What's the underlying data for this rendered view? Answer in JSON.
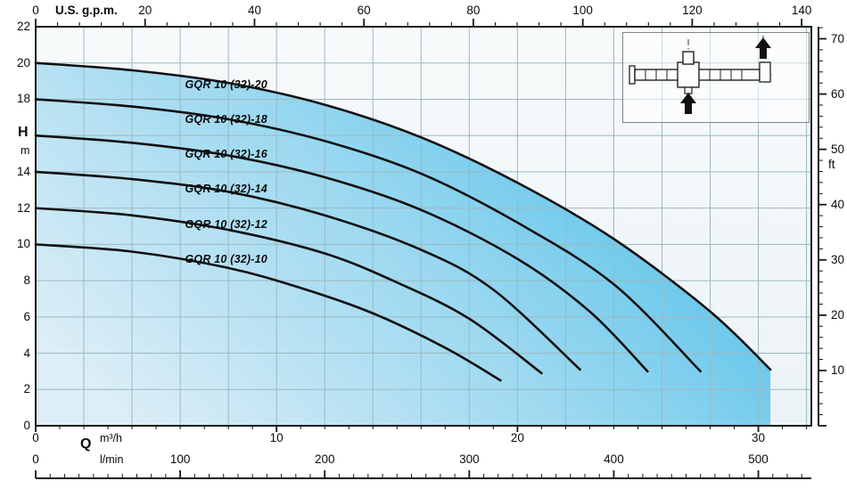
{
  "chart_data": {
    "type": "line",
    "description": "Pump head/flow performance curves",
    "axes": {
      "top": {
        "unit": "U.S. g.p.m.",
        "ticks": [
          0,
          20,
          40,
          60,
          80,
          100,
          120,
          140
        ],
        "minor_step": 4
      },
      "left": {
        "symbol": "H",
        "unit": "m",
        "ticks": [
          22,
          20,
          18,
          14,
          12,
          10,
          8,
          6,
          4,
          2,
          0
        ],
        "range": [
          0,
          22
        ]
      },
      "right": {
        "unit": "ft",
        "ticks": [
          70,
          60,
          50,
          40,
          30,
          20,
          10
        ],
        "minor_step": 2,
        "max": 72
      },
      "bottom_m3h": {
        "symbol": "Q",
        "unit": "m³/h",
        "ticks": [
          0,
          10,
          20,
          30
        ],
        "range": [
          0,
          32.2
        ]
      },
      "bottom_lmin": {
        "unit": "l/min",
        "ticks": [
          0,
          100,
          200,
          300,
          400,
          500
        ],
        "minor_step": 10,
        "max": 530
      }
    },
    "grid": {
      "x_step_m3h": 2,
      "y_step_m": 2
    },
    "series": [
      {
        "name": "GQR 10 (32)-20",
        "label_at": [
          6.2,
          18.8
        ],
        "points_q_h": [
          [
            0,
            20
          ],
          [
            4,
            19.6
          ],
          [
            8,
            18.9
          ],
          [
            12,
            17.7
          ],
          [
            16,
            15.9
          ],
          [
            20,
            13.4
          ],
          [
            24,
            10.3
          ],
          [
            28,
            6.3
          ],
          [
            30.5,
            3.1
          ]
        ]
      },
      {
        "name": "GQR 10 (32)-18",
        "label_at": [
          6.2,
          16.9
        ],
        "points_q_h": [
          [
            0,
            18
          ],
          [
            4,
            17.6
          ],
          [
            8,
            16.9
          ],
          [
            12,
            15.7
          ],
          [
            16,
            13.9
          ],
          [
            20,
            11.2
          ],
          [
            24,
            7.8
          ],
          [
            27.6,
            3.0
          ]
        ]
      },
      {
        "name": "GQR 10 (32)-16",
        "label_at": [
          6.2,
          15.0
        ],
        "points_q_h": [
          [
            0,
            16
          ],
          [
            4,
            15.6
          ],
          [
            8,
            14.9
          ],
          [
            12,
            13.7
          ],
          [
            16,
            11.9
          ],
          [
            20,
            9.2
          ],
          [
            23,
            6.3
          ],
          [
            25.4,
            3.0
          ]
        ]
      },
      {
        "name": "GQR 10 (32)-14",
        "label_at": [
          6.2,
          13.05
        ],
        "points_q_h": [
          [
            0,
            14
          ],
          [
            4,
            13.6
          ],
          [
            8,
            12.9
          ],
          [
            12,
            11.6
          ],
          [
            16,
            9.7
          ],
          [
            19,
            7.5
          ],
          [
            22.6,
            3.1
          ]
        ]
      },
      {
        "name": "GQR 10 (32)-12",
        "label_at": [
          6.2,
          11.1
        ],
        "points_q_h": [
          [
            0,
            12
          ],
          [
            4,
            11.6
          ],
          [
            8,
            10.8
          ],
          [
            12,
            9.5
          ],
          [
            15,
            7.9
          ],
          [
            18,
            5.9
          ],
          [
            21,
            2.9
          ]
        ]
      },
      {
        "name": "GQR 10 (32)-10",
        "label_at": [
          6.2,
          9.2
        ],
        "points_q_h": [
          [
            0,
            10
          ],
          [
            4,
            9.6
          ],
          [
            8,
            8.7
          ],
          [
            11,
            7.6
          ],
          [
            14,
            6.2
          ],
          [
            17,
            4.3
          ],
          [
            19.3,
            2.5
          ]
        ]
      }
    ],
    "colors": {
      "fill_left": "#ddeef7",
      "fill_mid": "#9bd8f0",
      "fill_right": "#45bce8",
      "grid": "#9cb9bf",
      "curve": "#101010",
      "frame": "#161616",
      "bg_top": "#f7fafb",
      "bg_bottom": "#ecf3f6"
    }
  }
}
